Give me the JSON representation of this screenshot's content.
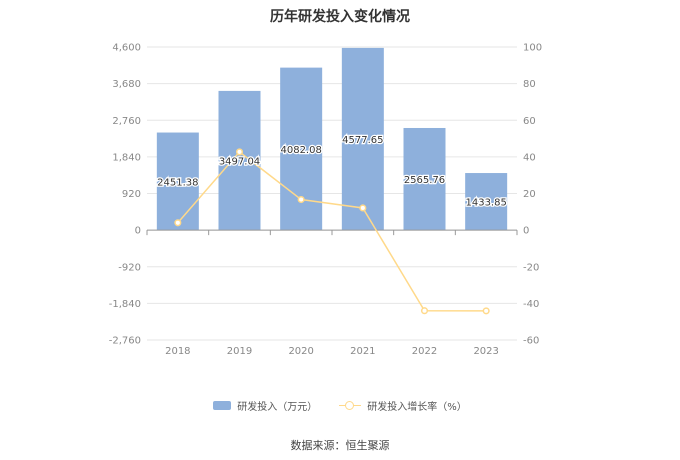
{
  "chart_data": {
    "type": "bar",
    "title": "历年研发投入变化情况",
    "categories": [
      "2018",
      "2019",
      "2020",
      "2021",
      "2022",
      "2023"
    ],
    "series": [
      {
        "name": "研发投入（万元）",
        "type": "bar",
        "axis": "left",
        "color": "#8eb0dc",
        "values": [
          2451.38,
          3497.04,
          4082.08,
          4577.65,
          2565.76,
          1433.85
        ],
        "labels": [
          "2451.38",
          "3497.04",
          "4082.08",
          "4577.65",
          "2565.76",
          "1433.85"
        ]
      },
      {
        "name": "研发投入增长率（%）",
        "type": "line",
        "axis": "right",
        "color": "#ffd98a",
        "values": [
          4,
          42.7,
          16.7,
          12.1,
          -44,
          -44.1
        ]
      }
    ],
    "y_left": {
      "min": -2760,
      "max": 4600,
      "ticks": [
        "4,600",
        "3,680",
        "2,760",
        "1,840",
        "920",
        "0",
        "-920",
        "-1,840",
        "-2,760"
      ]
    },
    "y_right": {
      "min": -60,
      "max": 100,
      "ticks": [
        "100",
        "80",
        "60",
        "40",
        "20",
        "0",
        "-20",
        "-40",
        "-60"
      ]
    },
    "grid": true,
    "legend_position": "bottom"
  },
  "source": "数据来源：恒生聚源"
}
